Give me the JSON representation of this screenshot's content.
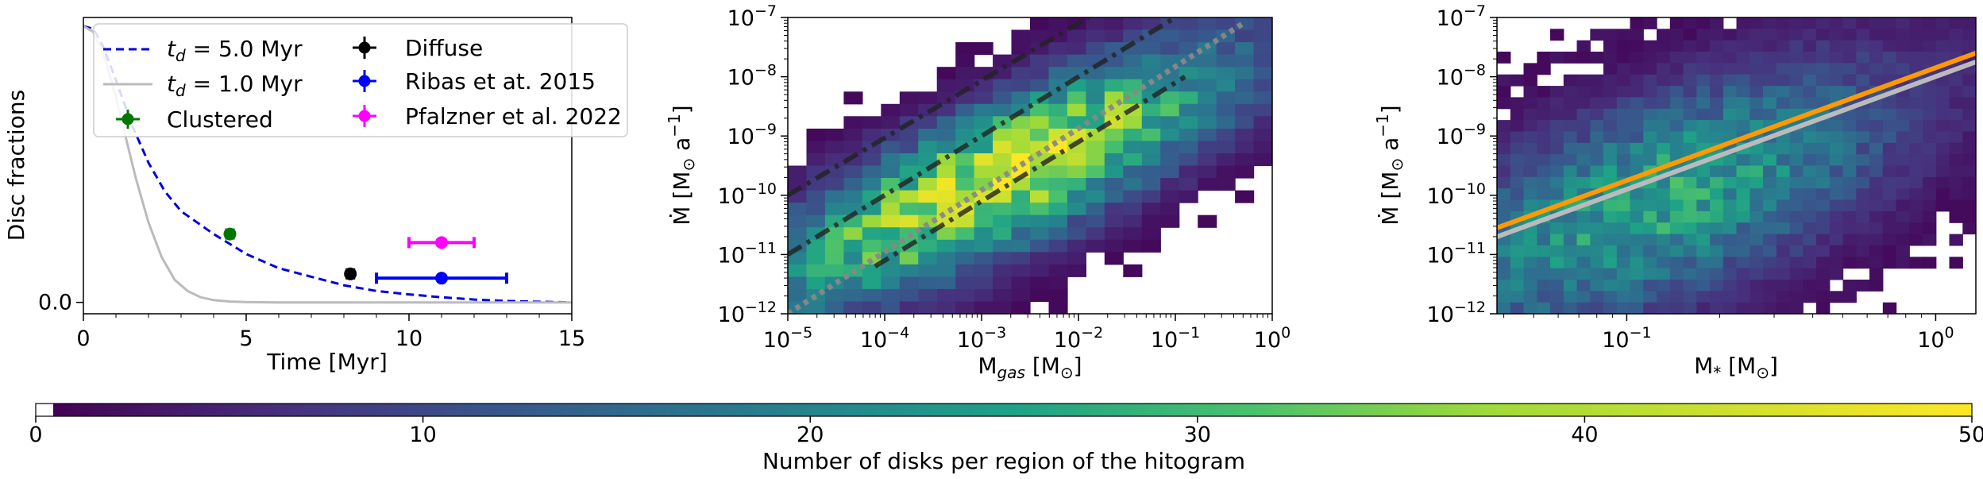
{
  "chart_data": [
    {
      "type": "line",
      "title": "",
      "ylabel": "Disc fractions",
      "xlabel": "Time [Myr]",
      "xlim": [
        0,
        15
      ],
      "ylim": [
        -0.04,
        1.0
      ],
      "xticks": [
        "0",
        "5",
        "10",
        "15"
      ],
      "xtick_values": [
        0,
        5,
        10,
        15
      ],
      "yticks": [
        "0.0"
      ],
      "ytick_values": [
        0.0
      ],
      "series": [
        {
          "name": "$t_d = 5.0$ Myr",
          "label_sym": "t",
          "label_sub": "d",
          "label_rest": " = 5.0 Myr",
          "style": "dashed",
          "color": "#0000dd",
          "x": [
            0,
            0.3,
            0.6,
            1.0,
            1.5,
            2.0,
            2.5,
            3.0,
            3.5,
            4.0,
            5.0,
            6.0,
            7.0,
            8.0,
            9.0,
            10.0,
            11.0,
            12.0,
            13.0,
            14.0,
            15.0
          ],
          "y": [
            0.97,
            0.96,
            0.9,
            0.78,
            0.62,
            0.49,
            0.39,
            0.32,
            0.28,
            0.24,
            0.17,
            0.12,
            0.09,
            0.06,
            0.04,
            0.028,
            0.018,
            0.01,
            0.005,
            0.002,
            0.0
          ]
        },
        {
          "name": "$t_d = 1.0$ Myr",
          "label_sym": "t",
          "label_sub": "d",
          "label_rest": " = 1.0 Myr",
          "style": "solid",
          "color": "#bbbbbb",
          "x": [
            0,
            0.3,
            0.6,
            1.0,
            1.3,
            1.6,
            2.0,
            2.4,
            2.8,
            3.2,
            3.6,
            4.0,
            4.5,
            5.0,
            6.0,
            8.0,
            15.0
          ],
          "y": [
            0.97,
            0.95,
            0.88,
            0.72,
            0.58,
            0.44,
            0.28,
            0.16,
            0.08,
            0.04,
            0.018,
            0.008,
            0.003,
            0.001,
            0.0,
            0.0,
            0.0
          ]
        }
      ],
      "points": [
        {
          "name": "Clustered",
          "x": 4.5,
          "y": 0.24,
          "xerr": 0.1,
          "yerr": 0.012,
          "color": "#007700"
        },
        {
          "name": "Diffuse",
          "x": 8.2,
          "y": 0.1,
          "xerr": 0.1,
          "yerr": 0.012,
          "color": "#000000"
        },
        {
          "name": "Ribas et at. 2015",
          "x": 11.0,
          "y": 0.085,
          "xerr": 2.0,
          "yerr": 0.02,
          "color": "#0000ff"
        },
        {
          "name": "Pfalzner et al. 2022",
          "x": 11.0,
          "y": 0.21,
          "xerr": 1.0,
          "yerr": 0.012,
          "color": "#ff00ff"
        }
      ],
      "legend": "top-right"
    },
    {
      "type": "heatmap",
      "xlabel_main": "M",
      "xlabel_sub": "gas",
      "xlabel_rest": " [M",
      "xlabel_unit_sub": "⊙",
      "xlabel_end": "]",
      "ylabel_main": "Ṁ [M",
      "ylabel_unit_sub": "⊙",
      "ylabel_rest": " a",
      "ylabel_sup": "−1",
      "ylabel_end": "]",
      "xscale": "log",
      "yscale": "log",
      "xlim_log": [
        -5,
        0
      ],
      "ylim_log": [
        -12,
        -7
      ],
      "xticks": [
        {
          "base": "10",
          "exp": "−5"
        },
        {
          "base": "10",
          "exp": "−4"
        },
        {
          "base": "10",
          "exp": "−3"
        },
        {
          "base": "10",
          "exp": "−2"
        },
        {
          "base": "10",
          "exp": "−1"
        },
        {
          "base": "10",
          "exp": "0"
        }
      ],
      "xtick_logs": [
        -5,
        -4,
        -3,
        -2,
        -1,
        0
      ],
      "yticks": [
        {
          "base": "10",
          "exp": "−12"
        },
        {
          "base": "10",
          "exp": "−11"
        },
        {
          "base": "10",
          "exp": "−10"
        },
        {
          "base": "10",
          "exp": "−9"
        },
        {
          "base": "10",
          "exp": "−8"
        },
        {
          "base": "10",
          "exp": "−7"
        }
      ],
      "ytick_logs": [
        -12,
        -11,
        -10,
        -9,
        -8,
        -7
      ],
      "density_center_log": [
        -2.8,
        -9.7
      ],
      "density_corr": 0.8,
      "density_peak": 44,
      "lines": [
        {
          "name": "gray dotted fit",
          "x_log": [
            -5,
            -0.3
          ],
          "y_log": [
            -12.0,
            -7.1
          ],
          "color": "#888888",
          "style": "dotted"
        },
        {
          "name": "upper dash-dot",
          "x_log": [
            -5,
            -1.9
          ],
          "y_log": [
            -10.0,
            -7.0
          ],
          "color": "#222222",
          "style": "dashdot"
        },
        {
          "name": "middle dash-dot",
          "x_log": [
            -5,
            -1.0
          ],
          "y_log": [
            -11.0,
            -7.0
          ],
          "color": "#222222",
          "style": "dashdot"
        },
        {
          "name": "lower dash-dot",
          "x_log": [
            -4.1,
            -0.9
          ],
          "y_log": [
            -11.2,
            -8.0
          ],
          "color": "#222222",
          "style": "dashdot"
        }
      ]
    },
    {
      "type": "heatmap",
      "xlabel_main": "M",
      "xlabel_sub": "*",
      "xlabel_rest": " [M",
      "xlabel_unit_sub": "⊙",
      "xlabel_end": "]",
      "ylabel_main": "Ṁ [M",
      "ylabel_unit_sub": "⊙",
      "ylabel_rest": " a",
      "ylabel_sup": "−1",
      "ylabel_end": "]",
      "xscale": "log",
      "yscale": "log",
      "xlim_log": [
        -1.42,
        0.13
      ],
      "ylim_log": [
        -12,
        -7
      ],
      "xticks": [
        {
          "base": "10",
          "exp": "−1"
        },
        {
          "base": "10",
          "exp": "0"
        }
      ],
      "xtick_logs": [
        -1,
        0
      ],
      "yticks": [
        {
          "base": "10",
          "exp": "−12"
        },
        {
          "base": "10",
          "exp": "−11"
        },
        {
          "base": "10",
          "exp": "−10"
        },
        {
          "base": "10",
          "exp": "−9"
        },
        {
          "base": "10",
          "exp": "−8"
        },
        {
          "base": "10",
          "exp": "−7"
        }
      ],
      "ytick_logs": [
        -12,
        -11,
        -10,
        -9,
        -8,
        -7
      ],
      "density_center_log": [
        -0.9,
        -10.1
      ],
      "density_corr": 0.55,
      "density_peak": 26,
      "lines": [
        {
          "name": "orange fit",
          "x_log": [
            -1.42,
            0.13
          ],
          "y_log": [
            -10.55,
            -7.6
          ],
          "color": "#ff9900",
          "style": "solid"
        },
        {
          "name": "gray fit",
          "x_log": [
            -1.42,
            0.13
          ],
          "y_log": [
            -10.7,
            -7.75
          ],
          "color": "#bbbbbb",
          "style": "solid"
        }
      ]
    }
  ],
  "colorbar": {
    "label": "Number of disks per region of the hitogram",
    "min": 0,
    "max": 50,
    "ticks": [
      "0",
      "10",
      "20",
      "30",
      "40",
      "50"
    ],
    "tick_values": [
      0,
      10,
      20,
      30,
      40,
      50
    ]
  }
}
